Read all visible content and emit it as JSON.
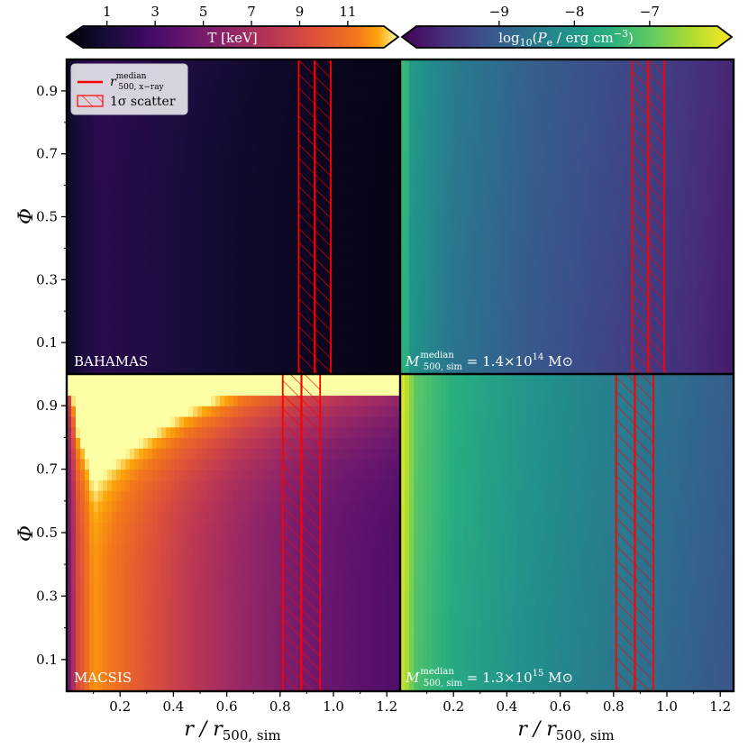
{
  "chart_data": {
    "type": "heatmap",
    "layout": "2x2 grid of heatmaps sharing x axis; top row BAHAMAS, bottom row MACSIS; left column temperature, right column electron pressure",
    "x_axis": {
      "label_main": "r / r",
      "label_sub": "500, sim",
      "range": [
        0.0,
        1.25
      ],
      "ticks": [
        0.2,
        0.4,
        0.6,
        0.8,
        1.0,
        1.2
      ],
      "tick_labels": [
        "0.2",
        "0.4",
        "0.6",
        "0.8",
        "1.0",
        "1.2"
      ]
    },
    "y_axis": {
      "label": "Φ",
      "range": [
        0.0,
        1.0
      ],
      "ticks": [
        0.1,
        0.3,
        0.5,
        0.7,
        0.9
      ],
      "tick_labels": [
        "0.1",
        "0.3",
        "0.5",
        "0.7",
        "0.9"
      ]
    },
    "colorbars": [
      {
        "name": "temperature",
        "label": "T  [keV]",
        "colormap": "inferno",
        "range": [
          0,
          12.5
        ],
        "ticks": [
          1,
          3,
          5,
          7,
          9,
          11
        ],
        "tick_labels": [
          "1",
          "3",
          "5",
          "7",
          "9",
          "11"
        ],
        "extend": "both"
      },
      {
        "name": "pressure",
        "label": "log10(Pe / erg cm^-3)",
        "colormap": "viridis",
        "range": [
          -10.1,
          -6.1
        ],
        "ticks": [
          -9,
          -8,
          -7
        ],
        "tick_labels": [
          "−9",
          "−8",
          "−7"
        ],
        "extend": "both"
      }
    ],
    "panels": [
      {
        "id": "bahamas-temperature",
        "row": 0,
        "col": 0,
        "label": "BAHAMAS",
        "quantity": "temperature",
        "profile_T_keV": [
          [
            0.0,
            0.9
          ],
          [
            0.05,
            1.6
          ],
          [
            0.12,
            2.2
          ],
          [
            0.3,
            1.9
          ],
          [
            0.5,
            1.5
          ],
          [
            0.7,
            1.1
          ],
          [
            0.9,
            0.8
          ],
          [
            1.1,
            0.6
          ],
          [
            1.25,
            0.5
          ]
        ],
        "phi_boost": 0.15,
        "median_band": [
          0.87,
          0.99
        ],
        "median_line": 0.93
      },
      {
        "id": "bahamas-pressure",
        "row": 0,
        "col": 1,
        "label": "",
        "quantity": "pressure",
        "profile_logP": [
          [
            0.0,
            -7.6
          ],
          [
            0.02,
            -7.4
          ],
          [
            0.04,
            -8.0
          ],
          [
            0.2,
            -8.5
          ],
          [
            0.5,
            -8.95
          ],
          [
            0.8,
            -9.25
          ],
          [
            1.0,
            -9.45
          ],
          [
            1.25,
            -9.75
          ]
        ],
        "median_band": [
          0.87,
          0.99
        ],
        "median_line": 0.93
      },
      {
        "id": "macsis-temperature",
        "row": 1,
        "col": 0,
        "label": "MACSIS",
        "quantity": "temperature",
        "profile_T_keV": [
          [
            0.0,
            4.0
          ],
          [
            0.04,
            9.0
          ],
          [
            0.1,
            11.5
          ],
          [
            0.25,
            10.0
          ],
          [
            0.45,
            8.0
          ],
          [
            0.65,
            6.4
          ],
          [
            0.85,
            5.2
          ],
          [
            1.05,
            4.3
          ],
          [
            1.25,
            3.6
          ]
        ],
        "phi_boost": 1.2,
        "median_band": [
          0.81,
          0.95
        ],
        "median_line": 0.88
      },
      {
        "id": "macsis-pressure",
        "row": 1,
        "col": 1,
        "label": "",
        "quantity": "pressure",
        "profile_logP": [
          [
            0.0,
            -6.3
          ],
          [
            0.02,
            -6.5
          ],
          [
            0.06,
            -7.2
          ],
          [
            0.2,
            -7.65
          ],
          [
            0.5,
            -8.1
          ],
          [
            0.8,
            -8.45
          ],
          [
            1.0,
            -8.7
          ],
          [
            1.25,
            -9.0
          ]
        ],
        "median_band": [
          0.81,
          0.95
        ],
        "median_line": 0.88
      }
    ],
    "annotations": [
      {
        "panel": "bahamas-pressure",
        "text_main": "M",
        "text_sup": "median",
        "text_sub": "500, sim",
        "text_value": " = 1.4×10",
        "exponent": "14",
        "unit": " M⊙"
      },
      {
        "panel": "macsis-pressure",
        "text_main": "M",
        "text_sup": "median",
        "text_sub": "500, sim",
        "text_value": " = 1.3×10",
        "exponent": "15",
        "unit": " M⊙"
      }
    ],
    "legend": {
      "position": "top-left of top-left panel",
      "entries": [
        {
          "type": "line",
          "color": "#ff0000",
          "main": "r",
          "sup": "median",
          "sub": "500, x−ray"
        },
        {
          "type": "hatch",
          "color": "#ff0000",
          "label": "1σ scatter"
        }
      ]
    }
  }
}
